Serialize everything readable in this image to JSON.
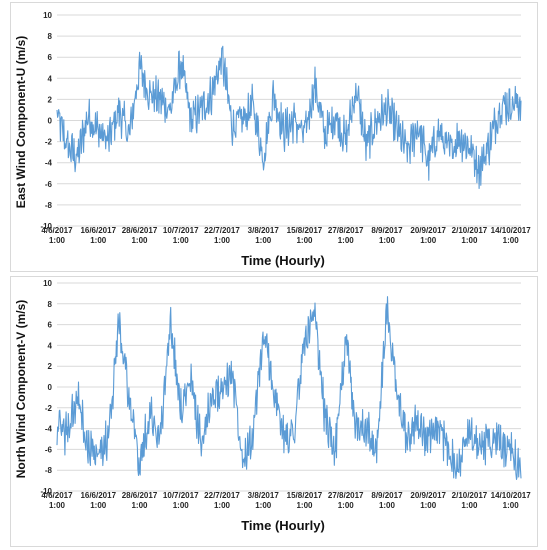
{
  "chart_data": [
    {
      "type": "line",
      "title": "",
      "xlabel": "Time (Hourly)",
      "ylabel": "East Wind Component-U (m/s)",
      "ylim": [
        -10,
        10
      ],
      "yticks": [
        -10,
        -8,
        -6,
        -4,
        -2,
        0,
        2,
        4,
        6,
        8,
        10
      ],
      "x_tick_labels": [
        [
          "4/6/2017",
          "1:00"
        ],
        [
          "16/6/2017",
          "1:00"
        ],
        [
          "28/6/2017",
          "1:00"
        ],
        [
          "10/7/2017",
          "1:00"
        ],
        [
          "22/7/2017",
          "1:00"
        ],
        [
          "3/8/2017",
          "1:00"
        ],
        [
          "15/8/2017",
          "1:00"
        ],
        [
          "27/8/2017",
          "1:00"
        ],
        [
          "8/9/2017",
          "1:00"
        ],
        [
          "20/9/2017",
          "1:00"
        ],
        [
          "2/10/2017",
          "1:00"
        ],
        [
          "14/10/2017",
          "1:00"
        ]
      ],
      "grid": true,
      "series": [
        {
          "color": "#5b9bd5",
          "x": [
            "4/6/2017",
            "7/6/2017",
            "10/6/2017",
            "13/6/2017",
            "16/6/2017",
            "19/6/2017",
            "22/6/2017",
            "25/6/2017",
            "28/6/2017",
            "1/7/2017",
            "4/7/2017",
            "7/7/2017",
            "10/7/2017",
            "13/7/2017",
            "16/7/2017",
            "19/7/2017",
            "22/7/2017",
            "25/7/2017",
            "28/7/2017",
            "31/7/2017",
            "3/8/2017",
            "6/8/2017",
            "9/8/2017",
            "12/8/2017",
            "15/8/2017",
            "18/8/2017",
            "21/8/2017",
            "24/8/2017",
            "27/8/2017",
            "30/8/2017",
            "2/9/2017",
            "5/9/2017",
            "8/9/2017",
            "11/9/2017",
            "14/9/2017",
            "17/9/2017",
            "20/9/2017",
            "23/9/2017",
            "26/9/2017",
            "29/9/2017",
            "2/10/2017",
            "5/10/2017",
            "8/10/2017",
            "11/10/2017",
            "14/10/2017",
            "17/10/2017"
          ],
          "values": [
            0.5,
            -2.5,
            -3.5,
            0.5,
            -1.0,
            -2.0,
            1.0,
            -1.5,
            5.0,
            2.5,
            2.0,
            1.0,
            5.5,
            0.0,
            1.0,
            2.5,
            6.0,
            -0.5,
            0.0,
            1.5,
            -3.5,
            2.5,
            -1.0,
            0.0,
            -1.5,
            3.5,
            -1.5,
            0.5,
            -2.0,
            3.0,
            -2.5,
            0.0,
            1.0,
            -1.0,
            -3.0,
            -0.5,
            -4.0,
            -1.0,
            -3.0,
            -1.5,
            -2.5,
            -4.5,
            -2.0,
            1.5,
            1.5,
            1.8
          ]
        }
      ]
    },
    {
      "type": "line",
      "title": "",
      "xlabel": "Time (Hourly)",
      "ylabel": "North Wind Component-V (m/s)",
      "ylim": [
        -10,
        10
      ],
      "yticks": [
        -10,
        -8,
        -6,
        -4,
        -2,
        0,
        2,
        4,
        6,
        8,
        10
      ],
      "x_tick_labels": [
        [
          "4/6/2017",
          "1:00"
        ],
        [
          "16/6/2017",
          "1:00"
        ],
        [
          "28/6/2017",
          "1:00"
        ],
        [
          "10/7/2017",
          "1:00"
        ],
        [
          "22/7/2017",
          "1:00"
        ],
        [
          "3/8/2017",
          "1:00"
        ],
        [
          "15/8/2017",
          "1:00"
        ],
        [
          "27/8/2017",
          "1:00"
        ],
        [
          "8/9/2017",
          "1:00"
        ],
        [
          "20/9/2017",
          "1:00"
        ],
        [
          "2/10/2017",
          "1:00"
        ],
        [
          "14/10/2017",
          "1:00"
        ]
      ],
      "grid": true,
      "series": [
        {
          "color": "#5b9bd5",
          "x": [
            "4/6/2017",
            "7/6/2017",
            "10/6/2017",
            "13/6/2017",
            "16/6/2017",
            "19/6/2017",
            "22/6/2017",
            "25/6/2017",
            "28/6/2017",
            "1/7/2017",
            "4/7/2017",
            "7/7/2017",
            "10/7/2017",
            "13/7/2017",
            "16/7/2017",
            "19/7/2017",
            "22/7/2017",
            "25/7/2017",
            "28/7/2017",
            "31/7/2017",
            "3/8/2017",
            "6/8/2017",
            "9/8/2017",
            "12/8/2017",
            "15/8/2017",
            "18/8/2017",
            "21/8/2017",
            "24/8/2017",
            "27/8/2017",
            "30/8/2017",
            "2/9/2017",
            "5/9/2017",
            "8/9/2017",
            "11/9/2017",
            "14/9/2017",
            "17/9/2017",
            "20/9/2017",
            "23/9/2017",
            "26/9/2017",
            "29/9/2017",
            "2/10/2017",
            "5/10/2017",
            "8/10/2017",
            "11/10/2017",
            "14/10/2017",
            "17/10/2017"
          ],
          "values": [
            -4.0,
            -4.5,
            -1.0,
            -6.0,
            -6.5,
            -5.0,
            6.5,
            -1.0,
            -7.5,
            -2.5,
            -5.0,
            6.0,
            -2.0,
            0.5,
            -5.5,
            -1.0,
            -0.5,
            1.5,
            -6.5,
            -5.0,
            5.0,
            0.0,
            -5.0,
            -4.0,
            4.5,
            6.5,
            -3.0,
            -6.0,
            4.5,
            -4.0,
            -3.5,
            -6.5,
            7.5,
            -1.0,
            -5.0,
            -3.0,
            -5.5,
            -4.0,
            -6.0,
            -7.5,
            -4.0,
            -6.0,
            -5.0,
            -5.5,
            -6.5,
            -7.5
          ]
        }
      ]
    }
  ]
}
